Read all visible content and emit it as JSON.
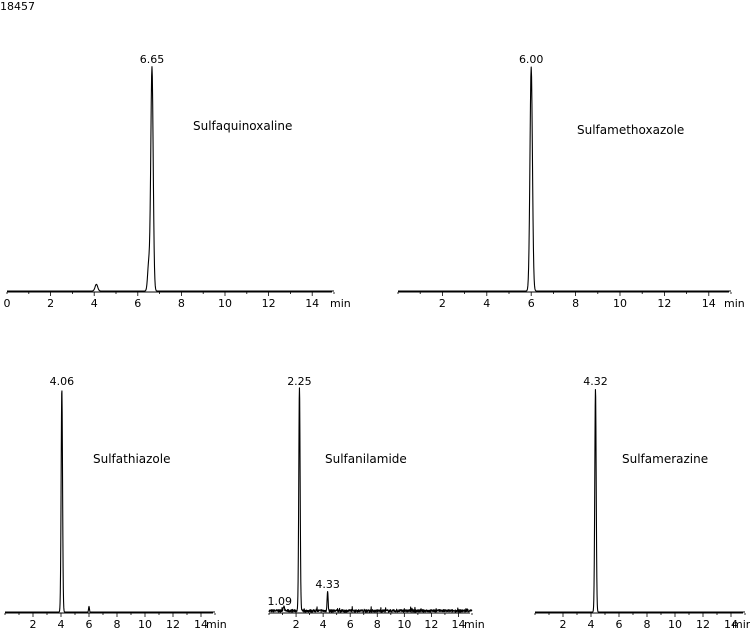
{
  "page_id": "18457",
  "colors": {
    "trace": "#000000",
    "axis": "#000000",
    "background": "#ffffff"
  },
  "chart_data": [
    {
      "type": "line",
      "title": "Sulfaquinoxaline",
      "xlabel": "min",
      "xlim": [
        0,
        15
      ],
      "ticks": [
        0,
        2,
        4,
        6,
        8,
        10,
        12,
        14
      ],
      "peaks": [
        {
          "rt": 4.1,
          "height": 0.03,
          "width": 0.06
        },
        {
          "rt": 6.5,
          "height": 0.12,
          "width": 0.05
        },
        {
          "rt": 6.65,
          "height": 1.0,
          "width": 0.055,
          "label": "6.65"
        }
      ],
      "noise": 0.0
    },
    {
      "type": "line",
      "title": "Sulfamethoxazole",
      "xlabel": "min",
      "xlim": [
        0,
        15
      ],
      "ticks": [
        2,
        4,
        6,
        8,
        10,
        12,
        14
      ],
      "peaks": [
        {
          "rt": 6.0,
          "height": 1.0,
          "width": 0.055,
          "label": "6.00"
        }
      ],
      "noise": 0.0
    },
    {
      "type": "line",
      "title": "Sulfathiazole",
      "xlabel": "min",
      "xlim": [
        0,
        15
      ],
      "ticks": [
        2,
        4,
        6,
        8,
        10,
        12,
        14
      ],
      "peaks": [
        {
          "rt": 4.06,
          "height": 1.0,
          "width": 0.05,
          "label": "4.06"
        },
        {
          "rt": 6.0,
          "height": 0.025,
          "width": 0.03
        }
      ],
      "noise": 0.0
    },
    {
      "type": "line",
      "title": "Sulfanilamide",
      "xlabel": "min",
      "xlim": [
        0,
        15
      ],
      "ticks": [
        2,
        4,
        6,
        8,
        10,
        12,
        14
      ],
      "peaks": [
        {
          "rt": 1.09,
          "height": 0.02,
          "width": 0.05,
          "label": "1.09"
        },
        {
          "rt": 2.25,
          "height": 1.0,
          "width": 0.05,
          "label": "2.25"
        },
        {
          "rt": 4.33,
          "height": 0.09,
          "width": 0.035,
          "label": "4.33"
        }
      ],
      "noise": 0.012
    },
    {
      "type": "line",
      "title": "Sulfamerazine",
      "xlabel": "min",
      "xlim": [
        0,
        15
      ],
      "ticks": [
        2,
        4,
        6,
        8,
        10,
        12,
        14
      ],
      "peaks": [
        {
          "rt": 4.32,
          "height": 1.0,
          "width": 0.05,
          "label": "4.32"
        }
      ],
      "noise": 0.0
    }
  ]
}
